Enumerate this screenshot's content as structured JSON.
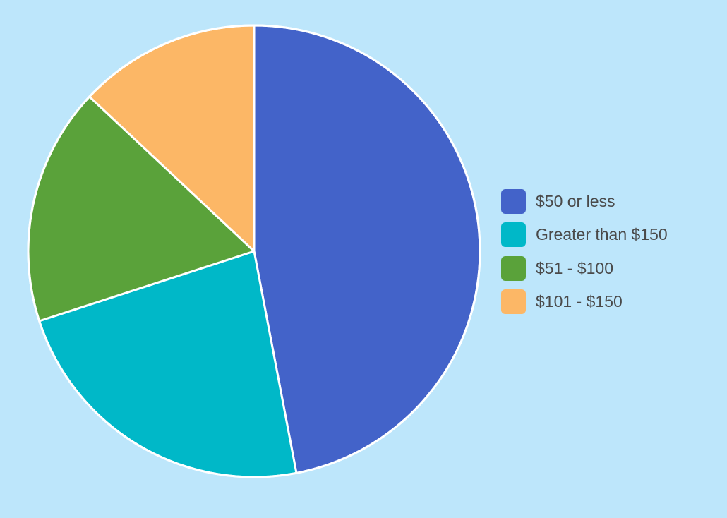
{
  "chart_data": {
    "type": "pie",
    "title": "",
    "categories": [
      "$50 or less",
      "Greater than $150",
      "$51 - $100",
      "$101 - $150"
    ],
    "values": [
      47,
      23,
      17,
      13
    ],
    "unit": "%",
    "colors": [
      "#4363c9",
      "#00b8c8",
      "#5aa23a",
      "#fcb766"
    ],
    "slice_order": "clockwise from 12 o'clock",
    "legend": {
      "position": "right",
      "entries": [
        {
          "label": "$50 or less",
          "color": "#4363c9"
        },
        {
          "label": "Greater than $150",
          "color": "#00b8c8"
        },
        {
          "label": "$51 - $100",
          "color": "#5aa23a"
        },
        {
          "label": "$101 - $150",
          "color": "#fcb766"
        }
      ]
    }
  }
}
